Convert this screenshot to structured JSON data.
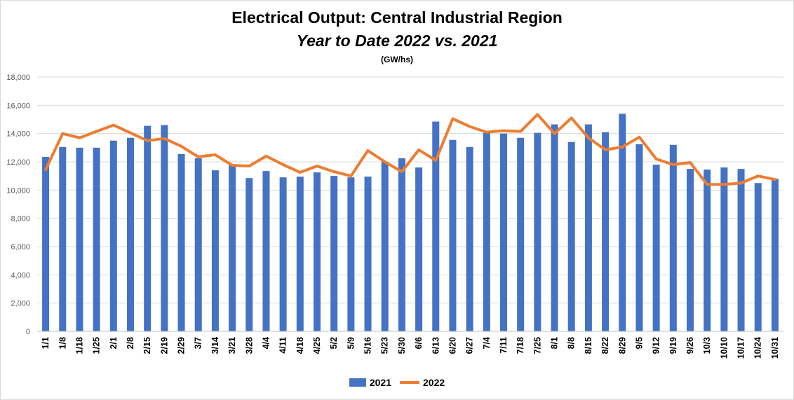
{
  "title": "Electrical Output:  Central Industrial Region",
  "subtitle": "Year to Date 2022 vs. 2021",
  "unit": "(GW/hs)",
  "colors": {
    "bar_2021": "#4472C4",
    "line_2022": "#ED7D31",
    "grid": "#D9D9D9"
  },
  "chart_data": {
    "type": "bar",
    "title": "Electrical Output:  Central Industrial Region",
    "subtitle": "Year to Date 2022 vs. 2021",
    "ylabel": "(GW/hs)",
    "ylim": [
      0,
      18000
    ],
    "yticks": [
      0,
      2000,
      4000,
      6000,
      8000,
      10000,
      12000,
      14000,
      16000,
      18000
    ],
    "ytick_labels": [
      "0",
      "2,000",
      "4,000",
      "6,000",
      "8,000",
      "10,000",
      "12,000",
      "14,000",
      "16,000",
      "18,000"
    ],
    "grid": true,
    "legend_position": "bottom",
    "categories": [
      "1/1",
      "1/8",
      "1/18",
      "1/25",
      "2/1",
      "2/8",
      "2/15",
      "2/19",
      "2/29",
      "3/7",
      "3/14",
      "3/21",
      "3/28",
      "4/4",
      "4/11",
      "4/18",
      "4/25",
      "5/2",
      "5/9",
      "5/16",
      "5/23",
      "5/30",
      "6/6",
      "6/13",
      "6/20",
      "6/27",
      "7/4",
      "7/11",
      "7/18",
      "7/25",
      "8/1",
      "8/8",
      "8/15",
      "8/22",
      "8/29",
      "9/5",
      "9/12",
      "9/19",
      "9/26",
      "10/3",
      "10/10",
      "10/17",
      "10/24",
      "10/31"
    ],
    "series": [
      {
        "name": "2021",
        "type": "bar",
        "values": [
          12350,
          13050,
          13000,
          13000,
          13500,
          13700,
          14550,
          14600,
          12550,
          12250,
          11400,
          11750,
          10850,
          11350,
          10900,
          10950,
          11250,
          11000,
          10900,
          10950,
          12000,
          12250,
          11600,
          14850,
          13550,
          13050,
          14050,
          14000,
          13700,
          14050,
          14650,
          13400,
          14650,
          14100,
          15400,
          13250,
          11800,
          13200,
          11500,
          11450,
          11600,
          11500,
          10500,
          10800
        ]
      },
      {
        "name": "2022",
        "type": "line",
        "values": [
          11450,
          14000,
          13700,
          14150,
          14600,
          14050,
          13500,
          13650,
          13100,
          12350,
          12500,
          11750,
          11700,
          12400,
          11800,
          11250,
          11700,
          11300,
          11000,
          12800,
          12000,
          11300,
          12850,
          12100,
          15050,
          14500,
          14100,
          14200,
          14150,
          15350,
          14000,
          15100,
          13700,
          12850,
          13050,
          13750,
          12200,
          11800,
          11950,
          10400,
          10400,
          10500,
          11000,
          10750
        ]
      }
    ]
  },
  "legend": [
    {
      "label": "2021",
      "kind": "bar"
    },
    {
      "label": "2022",
      "kind": "line"
    }
  ]
}
